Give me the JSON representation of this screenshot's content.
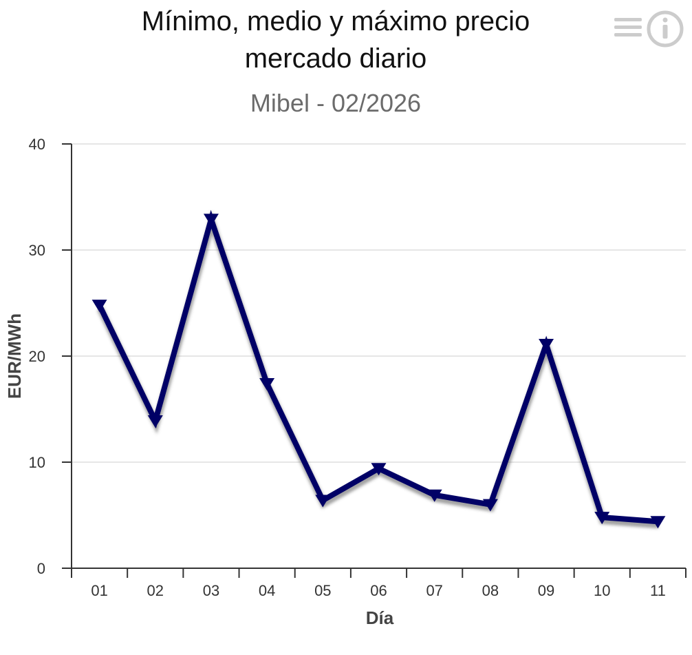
{
  "chart_data": {
    "type": "line",
    "title_lines": [
      "Mínimo, medio y máximo precio",
      "mercado diario"
    ],
    "subtitle": "Mibel - 02/2026",
    "xlabel": "Día",
    "ylabel": "EUR/MWh",
    "categories": [
      "01",
      "02",
      "03",
      "04",
      "05",
      "06",
      "07",
      "08",
      "09",
      "10",
      "11"
    ],
    "ylim": [
      0,
      40
    ],
    "yticks": [
      "0",
      "10",
      "20",
      "30",
      "40"
    ],
    "grid": true,
    "legend": "none",
    "series": [
      {
        "values": [
          24.8,
          13.9,
          32.9,
          17.4,
          6.4,
          9.4,
          6.9,
          6.0,
          21.1,
          4.8,
          4.4
        ],
        "color": "#000066",
        "marker": "triangle-down"
      }
    ]
  },
  "toolbar": {
    "menu_icon": "menu-icon",
    "info_icon": "info-icon"
  },
  "colors": {
    "series": "#000066",
    "grid": "#e6e6e6",
    "axis": "#333333",
    "icon": "#cccccc"
  }
}
